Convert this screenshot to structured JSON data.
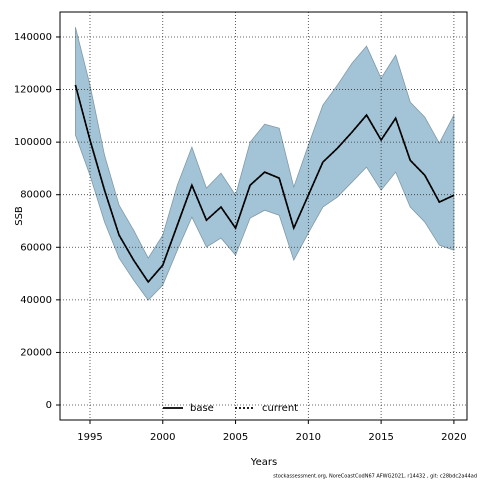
{
  "chart_data": {
    "type": "line",
    "xlabel": "Years",
    "ylabel": "SSB",
    "footnote": "stockassessment.org, NoreCoastCodN67 AFWG2021, r14432 , git: c28bdc2a44ad",
    "x": [
      1994,
      1995,
      1996,
      1997,
      1998,
      1999,
      2000,
      2001,
      2002,
      2003,
      2004,
      2005,
      2006,
      2007,
      2008,
      2009,
      2010,
      2011,
      2012,
      2013,
      2014,
      2015,
      2016,
      2017,
      2018,
      2019,
      2020
    ],
    "series": [
      {
        "name": "base",
        "color": "#000000",
        "dash": "solid",
        "values": [
          121700,
          100800,
          81700,
          64600,
          55100,
          46800,
          53200,
          68400,
          83600,
          70300,
          75300,
          67300,
          83600,
          88600,
          86300,
          67300,
          79800,
          92400,
          97700,
          103800,
          110300,
          100800,
          109100,
          93100,
          87400,
          77200,
          79800
        ]
      },
      {
        "name": "current",
        "color": "#000000",
        "dash": "dotted",
        "values": [
          121700,
          100800,
          81700,
          64600,
          55100,
          46800,
          53200,
          68400,
          83600,
          70300,
          75300,
          67300,
          83600,
          88600,
          86300,
          67300,
          79800,
          92400,
          97700,
          103800,
          110300,
          100800,
          109100,
          93100,
          87400,
          77200,
          79800
        ]
      }
    ],
    "band": {
      "color": "#a3c4d6",
      "upper": [
        143700,
        121700,
        95000,
        76000,
        66500,
        55900,
        64600,
        83600,
        98100,
        82500,
        88200,
        79800,
        100000,
        106800,
        105300,
        82900,
        98800,
        114100,
        121700,
        130000,
        136500,
        124300,
        133100,
        115200,
        109500,
        99600,
        110300
      ],
      "lower": [
        102700,
        87400,
        69600,
        55900,
        47500,
        39900,
        45600,
        58900,
        71500,
        60100,
        63500,
        57000,
        71100,
        74100,
        72200,
        55100,
        65400,
        75300,
        79100,
        84800,
        90500,
        81700,
        88600,
        75300,
        69600,
        60800,
        58900
      ]
    },
    "xlim": [
      1992.94,
      2020.9
    ],
    "ylim": [
      -5700,
      149500
    ],
    "xticks": [
      1995,
      2000,
      2005,
      2010,
      2015,
      2020
    ],
    "yticks": [
      0,
      20000,
      40000,
      60000,
      80000,
      100000,
      120000,
      140000
    ],
    "grid": true,
    "legend": "bottom"
  }
}
